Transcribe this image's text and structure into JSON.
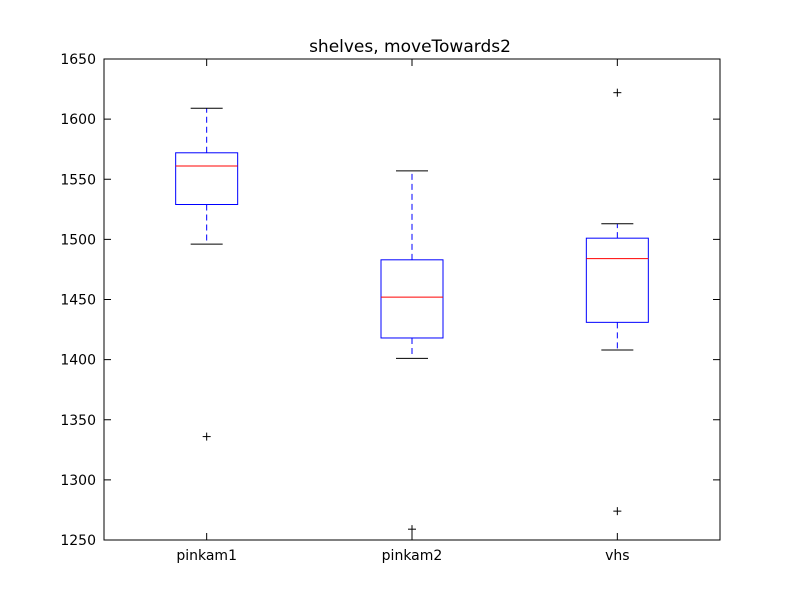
{
  "chart_data": {
    "type": "box",
    "title": "shelves, moveTowards2",
    "xlabel": "",
    "ylabel": "",
    "ylim": [
      1250,
      1650
    ],
    "yticks": [
      1250,
      1300,
      1350,
      1400,
      1450,
      1500,
      1550,
      1600,
      1650
    ],
    "grid": false,
    "categories": [
      "pinkam1",
      "pinkam2",
      "vhs"
    ],
    "boxes": [
      {
        "category": "pinkam1",
        "whisker_low": 1496,
        "q1": 1529,
        "median": 1561,
        "q3": 1572,
        "whisker_high": 1609,
        "outliers": [
          1336
        ]
      },
      {
        "category": "pinkam2",
        "whisker_low": 1401,
        "q1": 1418,
        "median": 1452,
        "q3": 1483,
        "whisker_high": 1557,
        "outliers": [
          1259
        ]
      },
      {
        "category": "vhs",
        "whisker_low": 1408,
        "q1": 1431,
        "median": 1484,
        "q3": 1501,
        "whisker_high": 1513,
        "outliers": [
          1622,
          1274
        ]
      }
    ],
    "colors": {
      "box": "#0000ff",
      "median": "#ff0000",
      "whisker_cap": "#000000",
      "outlier": "#000000",
      "axes": "#000000"
    }
  }
}
